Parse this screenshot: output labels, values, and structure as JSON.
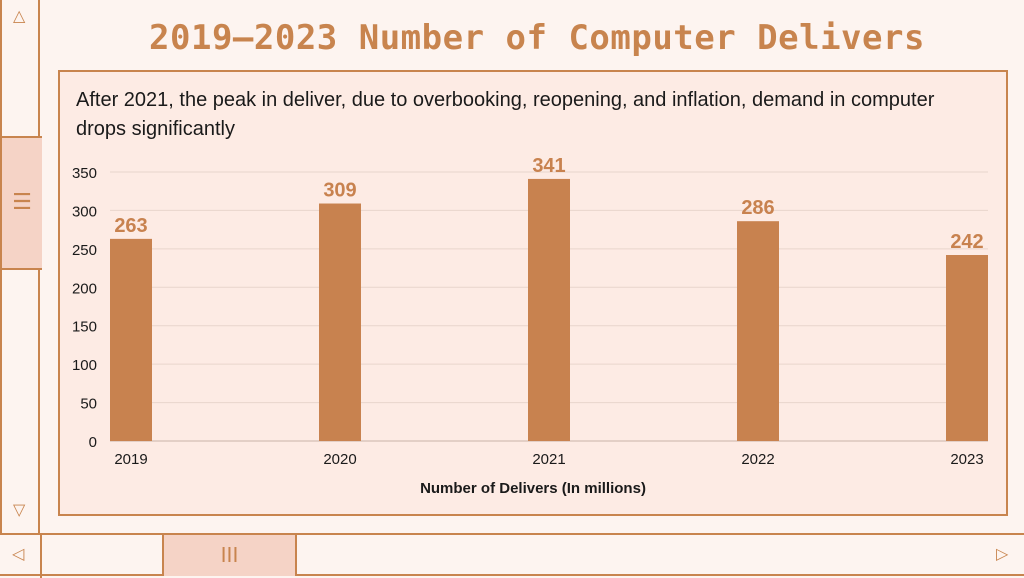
{
  "slide": {
    "title": "2019–2023 Number of Computer Delivers",
    "subtitle": "After 2021, the peak in deliver, due to overbooking, reopening, and inflation, demand in computer drops significantly"
  },
  "scrollbars": {
    "vertical_thumb_icon": "☰",
    "horizontal_thumb_icon": "III"
  },
  "colors": {
    "accent": "#c8844e",
    "bar": "#c8824f",
    "background": "#fdf4f0"
  },
  "chart_data": {
    "type": "bar",
    "title": "",
    "categories": [
      "2019",
      "2020",
      "2021",
      "2022",
      "2023"
    ],
    "values": [
      263,
      309,
      341,
      286,
      242
    ],
    "xlabel": "Number of Delivers (In millions)",
    "ylabel": "",
    "ylim": [
      0,
      350
    ],
    "yticks": [
      "0",
      "50",
      "100",
      "150",
      "200",
      "250",
      "300",
      "350"
    ],
    "grid": true,
    "data_labels": [
      "263",
      "309",
      "341",
      "286",
      "242"
    ]
  }
}
